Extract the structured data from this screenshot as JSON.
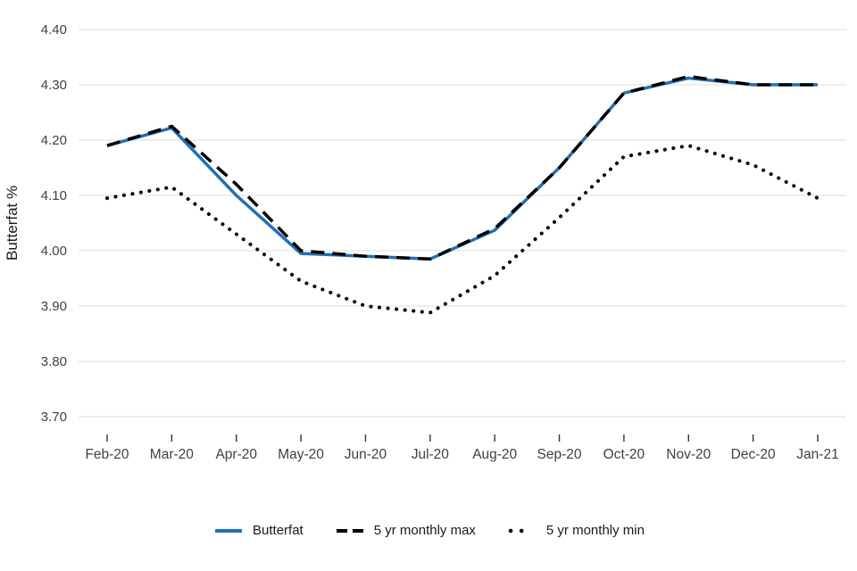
{
  "chart_data": {
    "type": "line",
    "title": "",
    "xlabel": "",
    "ylabel": "Butterfat %",
    "categories": [
      "Feb-20",
      "Mar-20",
      "Apr-20",
      "May-20",
      "Jun-20",
      "Jul-20",
      "Aug-20",
      "Sep-20",
      "Oct-20",
      "Nov-20",
      "Dec-20",
      "Jan-21"
    ],
    "y_ticks": [
      4.4,
      4.3,
      4.2,
      4.1,
      4.0,
      3.9,
      3.8,
      3.7
    ],
    "y_tick_labels": [
      "4.40",
      "4.30",
      "4.20",
      "4.10",
      "4.00",
      "3.90",
      "3.80",
      "3.70"
    ],
    "ylim": [
      3.7,
      4.4
    ],
    "grid": "horizontal",
    "legend_position": "bottom",
    "colors": {
      "grid": "#e3e3e3",
      "axis_text": "#404040",
      "tick": "#333333",
      "blue": "#2171b5",
      "black": "#000000"
    },
    "series": [
      {
        "name": "Butterfat",
        "style": "solid",
        "color": "#2171b5",
        "values": [
          4.19,
          4.222,
          4.1,
          3.995,
          3.99,
          3.985,
          4.037,
          4.15,
          4.285,
          4.312,
          4.3,
          4.3
        ]
      },
      {
        "name": "5 yr monthly max",
        "style": "dashed",
        "color": "#000000",
        "values": [
          4.19,
          4.225,
          4.12,
          4.0,
          3.99,
          3.985,
          4.04,
          4.15,
          4.285,
          4.315,
          4.3,
          4.3
        ]
      },
      {
        "name": "5 yr monthly min",
        "style": "dotted",
        "color": "#000000",
        "values": [
          4.095,
          4.115,
          4.03,
          3.945,
          3.9,
          3.888,
          3.955,
          4.06,
          4.17,
          4.19,
          4.155,
          4.095
        ]
      }
    ]
  }
}
